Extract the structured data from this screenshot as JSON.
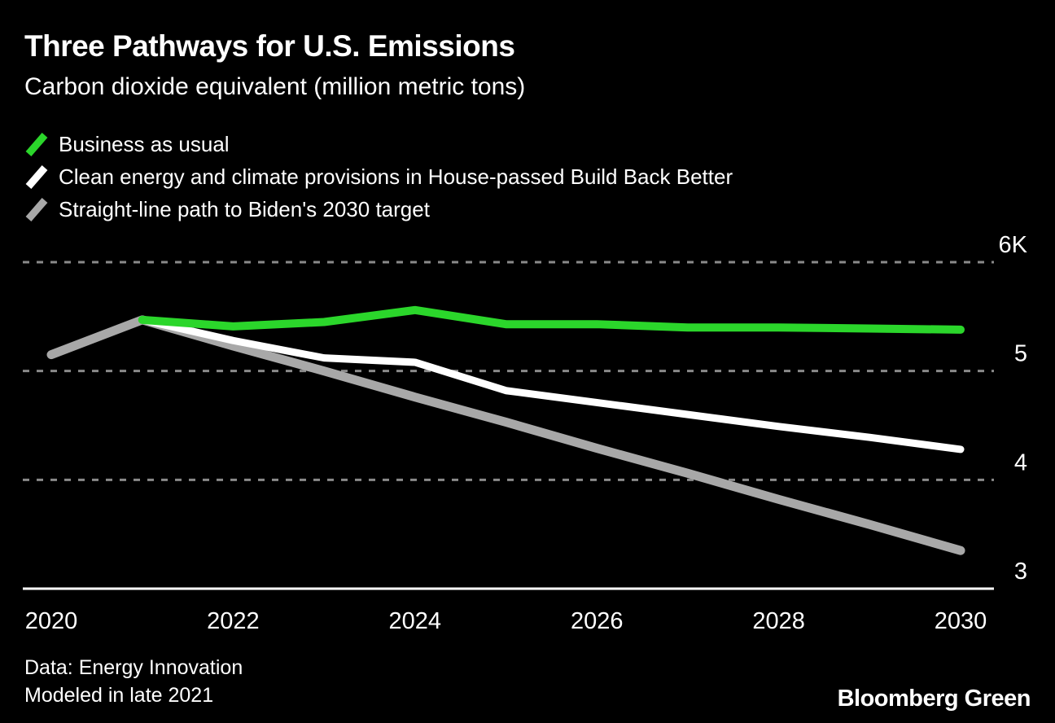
{
  "header": {
    "title": "Three Pathways for U.S. Emissions",
    "subtitle": "Carbon dioxide equivalent (million metric tons)"
  },
  "legend": {
    "items": [
      {
        "label": "Business as usual",
        "color": "#2bd62b"
      },
      {
        "label": "Clean energy and climate provisions in House-passed Build Back Better",
        "color": "#ffffff"
      },
      {
        "label": "Straight-line path to Biden's 2030 target",
        "color": "#a8a8a8"
      }
    ]
  },
  "chart_data": {
    "type": "line",
    "title": "Three Pathways for U.S. Emissions",
    "ylabel": "Carbon dioxide equivalent (million metric tons)",
    "xlim": [
      2020,
      2030
    ],
    "ylim": [
      3,
      6
    ],
    "grid": "dashed horizontal",
    "grid_color": "#8a8a8a",
    "axis_color": "#ffffff",
    "gridlines": [
      6,
      5,
      4
    ],
    "xticks": [
      2020,
      2022,
      2024,
      2026,
      2028,
      2030
    ],
    "yticks": [
      {
        "value": 6,
        "label": "6K"
      },
      {
        "value": 5,
        "label": "5"
      },
      {
        "value": 4,
        "label": "4"
      },
      {
        "value": 3,
        "label": "3"
      }
    ],
    "series": [
      {
        "id": "straight-line-biden-target",
        "name": "Straight-line path to Biden's 2030 target",
        "color": "#a8a8a8",
        "width": 11,
        "x": [
          2020,
          2021,
          2022,
          2023,
          2024,
          2025,
          2026,
          2027,
          2028,
          2029,
          2030
        ],
        "values": [
          5.15,
          5.47,
          5.23,
          5.0,
          4.76,
          4.53,
          4.29,
          4.06,
          3.82,
          3.59,
          3.35
        ]
      },
      {
        "id": "build-back-better",
        "name": "Clean energy and climate provisions in House-passed Build Back Better",
        "color": "#ffffff",
        "width": 9,
        "x": [
          2021,
          2022,
          2023,
          2024,
          2025,
          2026,
          2027,
          2028,
          2029,
          2030
        ],
        "values": [
          5.47,
          5.28,
          5.12,
          5.08,
          4.82,
          4.71,
          4.6,
          4.49,
          4.39,
          4.28
        ]
      },
      {
        "id": "business-as-usual",
        "name": "Business as usual",
        "color": "#2bd62b",
        "width": 10,
        "x": [
          2021,
          2022,
          2023,
          2024,
          2025,
          2026,
          2027,
          2028,
          2029,
          2030
        ],
        "values": [
          5.47,
          5.41,
          5.45,
          5.56,
          5.43,
          5.43,
          5.4,
          5.4,
          5.39,
          5.38
        ]
      }
    ]
  },
  "footer": {
    "source_line1": "Data: Energy Innovation",
    "source_line2": "Modeled in late 2021",
    "brand": "Bloomberg Green"
  }
}
